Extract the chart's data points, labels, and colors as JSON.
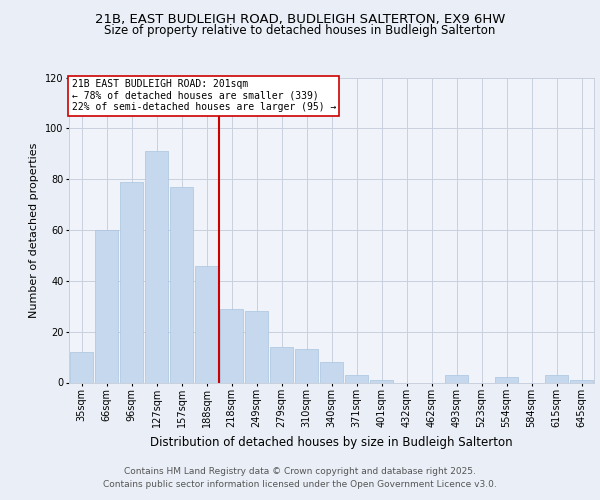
{
  "title1": "21B, EAST BUDLEIGH ROAD, BUDLEIGH SALTERTON, EX9 6HW",
  "title2": "Size of property relative to detached houses in Budleigh Salterton",
  "xlabel": "Distribution of detached houses by size in Budleigh Salterton",
  "ylabel": "Number of detached properties",
  "categories": [
    "35sqm",
    "66sqm",
    "96sqm",
    "127sqm",
    "157sqm",
    "188sqm",
    "218sqm",
    "249sqm",
    "279sqm",
    "310sqm",
    "340sqm",
    "371sqm",
    "401sqm",
    "432sqm",
    "462sqm",
    "493sqm",
    "523sqm",
    "554sqm",
    "584sqm",
    "615sqm",
    "645sqm"
  ],
  "values": [
    12,
    60,
    79,
    91,
    77,
    46,
    29,
    28,
    14,
    13,
    8,
    3,
    1,
    0,
    0,
    3,
    0,
    2,
    0,
    3,
    1
  ],
  "bar_color": "#c5d8ed",
  "bar_edge_color": "#a8c4de",
  "vline_x_index": 5.5,
  "vline_color": "#cc0000",
  "annotation_box_text": "21B EAST BUDLEIGH ROAD: 201sqm\n← 78% of detached houses are smaller (339)\n22% of semi-detached houses are larger (95) →",
  "annotation_box_color": "#ffffff",
  "annotation_box_edge_color": "#cc0000",
  "ylim": [
    0,
    120
  ],
  "yticks": [
    0,
    20,
    40,
    60,
    80,
    100,
    120
  ],
  "bg_color": "#eaeff7",
  "plot_bg_color": "#f0f4fa",
  "grid_color": "#c8d0de",
  "footer1": "Contains HM Land Registry data © Crown copyright and database right 2025.",
  "footer2": "Contains public sector information licensed under the Open Government Licence v3.0.",
  "title1_fontsize": 9.5,
  "title2_fontsize": 8.5,
  "xlabel_fontsize": 8.5,
  "ylabel_fontsize": 8.0,
  "tick_fontsize": 7.0,
  "ann_fontsize": 7.0,
  "footer_fontsize": 6.5
}
